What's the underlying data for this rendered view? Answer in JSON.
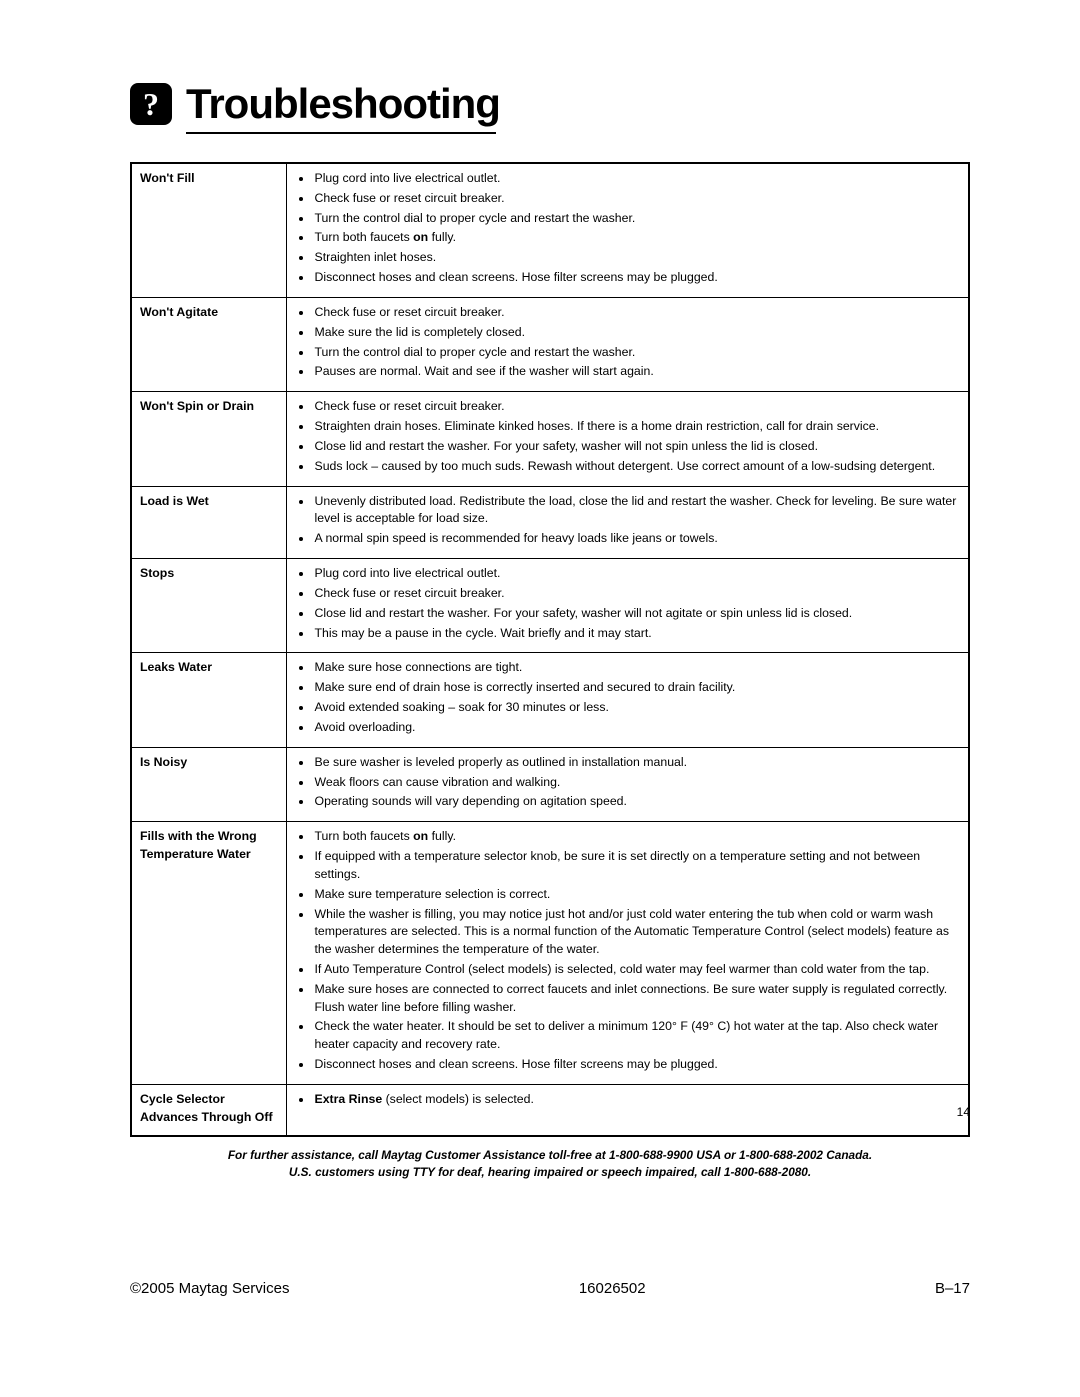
{
  "heading": "Troubleshooting",
  "rows": [
    {
      "problem": "Won't Fill",
      "solutions": [
        {
          "text": "Plug cord into live electrical outlet."
        },
        {
          "text": "Check fuse or reset circuit breaker."
        },
        {
          "text": "Turn the control dial to proper cycle and restart the washer."
        },
        {
          "pre": "Turn both faucets ",
          "bold": "on",
          "post": " fully."
        },
        {
          "text": "Straighten inlet hoses."
        },
        {
          "text": "Disconnect hoses and clean screens. Hose filter screens may be plugged."
        }
      ]
    },
    {
      "problem": "Won't Agitate",
      "solutions": [
        {
          "text": "Check fuse or reset circuit breaker."
        },
        {
          "text": "Make sure the lid is completely closed."
        },
        {
          "text": "Turn the control dial to proper cycle and restart the washer."
        },
        {
          "text": "Pauses are normal. Wait and see if the washer will start again."
        }
      ]
    },
    {
      "problem": "Won't Spin or Drain",
      "solutions": [
        {
          "text": "Check fuse or reset circuit breaker."
        },
        {
          "text": "Straighten drain hoses. Eliminate kinked hoses. If there is a home drain restriction, call for drain service."
        },
        {
          "text": "Close lid and restart the washer. For your safety, washer will not spin unless the lid is closed."
        },
        {
          "text": "Suds lock – caused by too much suds. Rewash without detergent. Use correct amount of a low-sudsing detergent."
        }
      ]
    },
    {
      "problem": "Load is Wet",
      "solutions": [
        {
          "text": "Unevenly distributed load. Redistribute the load, close the lid and restart the washer. Check for leveling. Be sure water level is acceptable for load size."
        },
        {
          "text": "A normal spin speed is recommended for heavy loads like jeans or towels."
        }
      ]
    },
    {
      "problem": "Stops",
      "solutions": [
        {
          "text": "Plug cord into live electrical outlet."
        },
        {
          "text": "Check fuse or reset circuit breaker."
        },
        {
          "text": "Close lid and restart the washer. For your safety, washer will not agitate or spin unless lid is closed."
        },
        {
          "text": "This may be a pause in the cycle. Wait briefly and it may start."
        }
      ]
    },
    {
      "problem": "Leaks Water",
      "solutions": [
        {
          "text": "Make sure hose connections are tight."
        },
        {
          "text": "Make sure end of drain hose is correctly inserted and secured to drain facility."
        },
        {
          "text": "Avoid extended soaking – soak for 30 minutes or less."
        },
        {
          "text": "Avoid overloading."
        }
      ]
    },
    {
      "problem": "Is Noisy",
      "solutions": [
        {
          "text": "Be sure washer is leveled properly as outlined in installation manual."
        },
        {
          "text": "Weak floors can cause vibration and walking."
        },
        {
          "text": "Operating sounds will vary depending on agitation speed."
        }
      ]
    },
    {
      "problem": "Fills with the Wrong Temperature Water",
      "solutions": [
        {
          "pre": "Turn both faucets ",
          "bold": "on",
          "post": " fully."
        },
        {
          "text": "If equipped with a temperature selector knob, be sure it is set directly on a temperature setting and not between settings."
        },
        {
          "text": "Make sure temperature selection is correct."
        },
        {
          "text": "While the washer is filling, you may notice just hot and/or just cold water entering the tub when cold or warm wash temperatures are selected. This is a normal function of the Automatic Temperature Control (select models) feature as the washer determines the temperature of the water."
        },
        {
          "text": "If Auto Temperature Control (select models) is selected, cold water may feel warmer than cold water from the tap."
        },
        {
          "text": "Make sure hoses are connected to correct faucets and inlet connections. Be sure water supply is regulated correctly. Flush water line before filling washer."
        },
        {
          "text": "Check the water heater. It should be set to deliver a minimum 120° F (49° C) hot water at the tap. Also check water heater capacity and recovery rate."
        },
        {
          "text": "Disconnect hoses and clean screens. Hose filter screens may be plugged."
        }
      ]
    },
    {
      "problem": "Cycle Selector Advances Through Off",
      "solutions": [
        {
          "boldpre": "Extra Rinse",
          "post": " (select models) is selected."
        }
      ]
    }
  ],
  "assist_line1": "For further assistance, call Maytag Customer Assistance toll-free at 1-800-688-9900 USA or 1-800-688-2002 Canada.",
  "assist_line2": "U.S. customers using TTY for deaf, hearing impaired or speech impaired, call 1-800-688-2080.",
  "small_page_num": "14",
  "footer_left": "©2005 Maytag Services",
  "footer_mid": "16026502",
  "footer_right": "B–17"
}
